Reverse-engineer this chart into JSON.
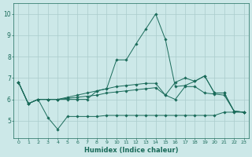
{
  "xlabel": "Humidex (Indice chaleur)",
  "bg_color": "#cce8e8",
  "grid_color": "#aacccc",
  "line_color": "#1a6b5a",
  "xlim": [
    -0.5,
    23.5
  ],
  "ylim": [
    4.2,
    10.5
  ],
  "yticks": [
    5,
    6,
    7,
    8,
    9,
    10
  ],
  "xticks": [
    0,
    1,
    2,
    3,
    4,
    5,
    6,
    7,
    8,
    9,
    10,
    11,
    12,
    13,
    14,
    15,
    16,
    17,
    18,
    19,
    20,
    21,
    22,
    23
  ],
  "series": [
    {
      "x": [
        0,
        1,
        2,
        3,
        4,
        5,
        6,
        7,
        8,
        9,
        10,
        11,
        12,
        13,
        14,
        15,
        16,
        17,
        18,
        19,
        20,
        21,
        22,
        23
      ],
      "y": [
        6.8,
        5.8,
        6.0,
        5.15,
        4.6,
        5.2,
        5.2,
        5.2,
        5.2,
        5.25,
        5.25,
        5.25,
        5.25,
        5.25,
        5.25,
        5.25,
        5.25,
        5.25,
        5.25,
        5.25,
        5.25,
        5.4,
        5.4,
        5.4
      ]
    },
    {
      "x": [
        0,
        1,
        2,
        3,
        4,
        5,
        6,
        7,
        8,
        9,
        10,
        11,
        12,
        13,
        14,
        15,
        16,
        17,
        18,
        19,
        20,
        21,
        22,
        23
      ],
      "y": [
        6.8,
        5.8,
        6.0,
        6.0,
        6.0,
        6.05,
        6.1,
        6.15,
        6.2,
        6.3,
        6.35,
        6.4,
        6.45,
        6.5,
        6.55,
        6.2,
        6.0,
        6.6,
        6.6,
        6.3,
        6.25,
        6.2,
        5.45,
        5.4
      ]
    },
    {
      "x": [
        0,
        1,
        2,
        3,
        4,
        5,
        6,
        7,
        8,
        9,
        10,
        11,
        12,
        13,
        14,
        15,
        16,
        17,
        18,
        19,
        20,
        21,
        22,
        23
      ],
      "y": [
        6.8,
        5.8,
        6.0,
        6.0,
        6.0,
        6.1,
        6.2,
        6.3,
        6.4,
        6.5,
        6.6,
        6.65,
        6.7,
        6.75,
        6.75,
        6.2,
        6.8,
        7.0,
        6.85,
        7.1,
        6.3,
        6.3,
        5.45,
        5.4
      ]
    },
    {
      "x": [
        0,
        1,
        2,
        3,
        4,
        5,
        6,
        7,
        8,
        9,
        10,
        11,
        12,
        13,
        14,
        15,
        16,
        17,
        18,
        19,
        20,
        21,
        22,
        23
      ],
      "y": [
        6.8,
        5.8,
        6.0,
        6.0,
        6.0,
        6.0,
        6.0,
        6.0,
        6.4,
        6.5,
        7.85,
        7.85,
        8.6,
        9.3,
        10.0,
        8.8,
        6.6,
        6.65,
        6.85,
        7.1,
        6.3,
        6.3,
        5.45,
        5.4
      ]
    }
  ]
}
